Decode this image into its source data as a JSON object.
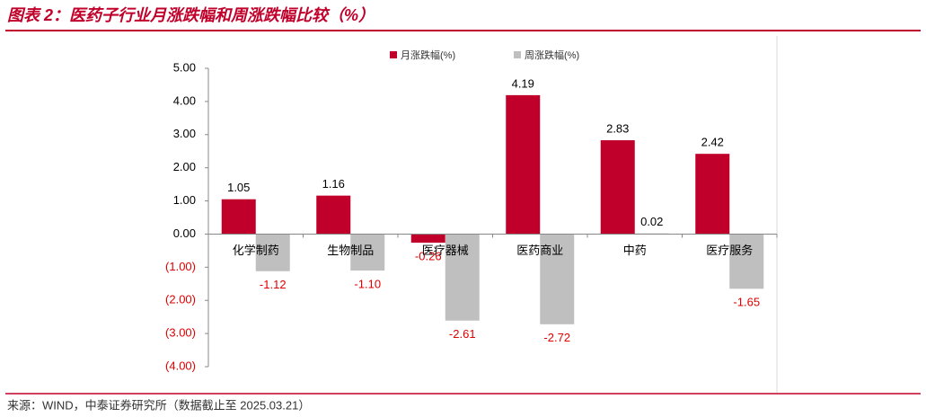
{
  "chart_data": {
    "type": "bar",
    "title": "图表 2：医药子行业月涨跌幅和周涨跌幅比较（%）",
    "source": "来源：WIND，中泰证券研究所（数据截止至 2025.03.21）",
    "categories": [
      "化学制药",
      "生物制品",
      "医疗器械",
      "医药商业",
      "中药",
      "医疗服务"
    ],
    "series": [
      {
        "name": "月涨跌幅(%)",
        "color": "#c0002a",
        "values": [
          1.05,
          1.16,
          -0.26,
          4.19,
          2.83,
          2.42
        ],
        "value_labels": [
          "1.05",
          "1.16",
          "-0.26",
          "4.19",
          "2.83",
          "2.42"
        ]
      },
      {
        "name": "周涨跌幅(%)",
        "color": "#bfbfbf",
        "values": [
          -1.12,
          -1.1,
          -2.61,
          -2.72,
          0.02,
          -1.65
        ],
        "value_labels": [
          "-1.12",
          "-1.10",
          "-2.61",
          "-2.72",
          "0.02",
          "-1.65"
        ]
      }
    ],
    "ylim": [
      -4,
      5
    ],
    "yticks": [
      {
        "value": 5,
        "label": "5.00"
      },
      {
        "value": 4,
        "label": "4.00"
      },
      {
        "value": 3,
        "label": "3.00"
      },
      {
        "value": 2,
        "label": "2.00"
      },
      {
        "value": 1,
        "label": "1.00"
      },
      {
        "value": 0,
        "label": "0.00"
      },
      {
        "value": -1,
        "label": "(1.00)"
      },
      {
        "value": -2,
        "label": "(2.00)"
      },
      {
        "value": -3,
        "label": "(3.00)"
      },
      {
        "value": -4,
        "label": "(4.00)"
      }
    ],
    "grid": false,
    "legend": "top"
  }
}
